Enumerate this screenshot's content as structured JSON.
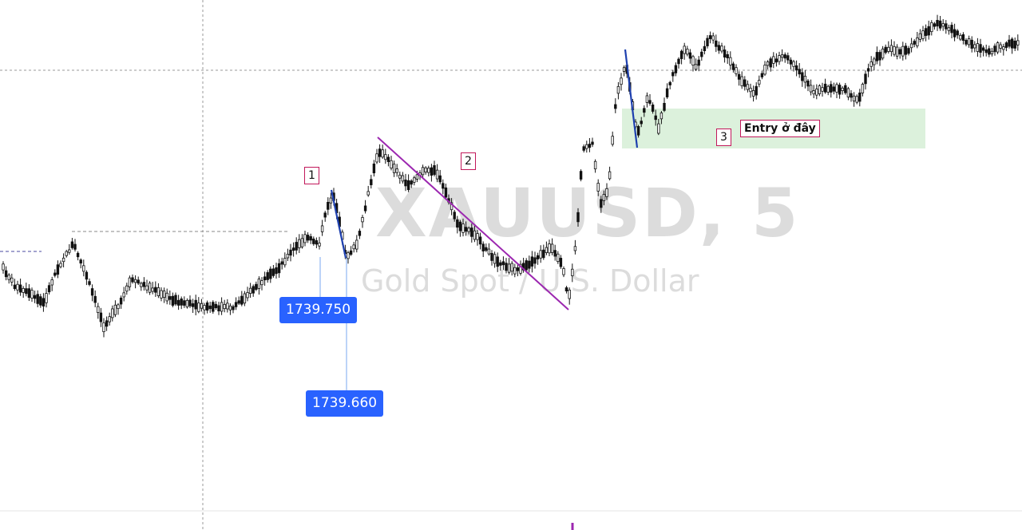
{
  "chart_data": {
    "type": "candlestick",
    "symbol": "XAUUSD",
    "interval": "5",
    "description": "Gold Spot / U.S. Dollar",
    "grid": false,
    "price_labels": [
      "1739.750",
      "1739.660"
    ],
    "annotations": {
      "marker_1": "1",
      "marker_2": "2",
      "marker_3": "3",
      "entry_note": "Entry ở đây"
    },
    "colors": {
      "candle": "#111111",
      "trendline": "#9c27b0",
      "short_line": "#1e40af",
      "zone": "#d8f0d8",
      "price_tag": "#2962ff",
      "marker_border": "#c2185b",
      "dashed": "#888888"
    }
  }
}
